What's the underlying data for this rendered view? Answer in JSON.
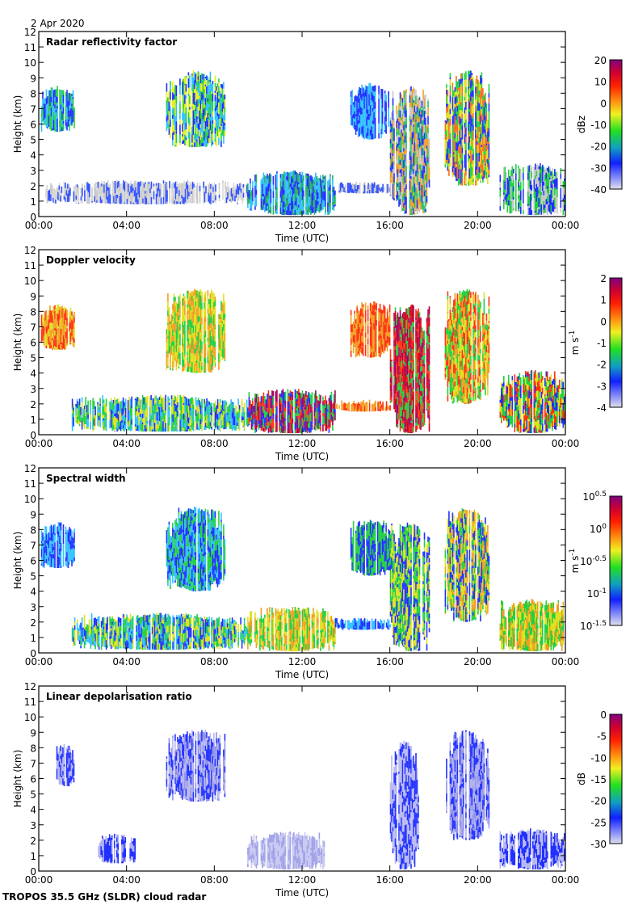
{
  "date_label": "2 Apr 2020",
  "footer": "TROPOS 35.5 GHz (SLDR) cloud radar",
  "chart_data": [
    {
      "type": "heatmap",
      "title": "Radar reflectivity factor",
      "xlabel": "Time (UTC)",
      "ylabel": "Height (km)",
      "xticks": [
        "00:00",
        "04:00",
        "08:00",
        "12:00",
        "16:00",
        "20:00",
        "00:00"
      ],
      "ylim": [
        0,
        12
      ],
      "xlim_hours": [
        0,
        24
      ],
      "colorbar": {
        "unit": "dBz",
        "ticks": [
          "20",
          "10",
          "0",
          "-10",
          "-20",
          "-30",
          "-40"
        ],
        "range": [
          -40,
          20
        ]
      },
      "regions": [
        {
          "t": [
            0.1,
            1.6
          ],
          "h": [
            5.5,
            8.5
          ],
          "colors": [
            "#2030ff",
            "#30c0ff",
            "#20d040"
          ]
        },
        {
          "t": [
            5.8,
            8.5
          ],
          "h": [
            4.5,
            9.5
          ],
          "colors": [
            "#2030ff",
            "#20d040",
            "#e0f020",
            "#30c0ff"
          ]
        },
        {
          "t": [
            0.3,
            9.5
          ],
          "h": [
            0.8,
            2.4
          ],
          "colors": [
            "#c8c8c8",
            "#3050ff",
            "#d8d8d8"
          ]
        },
        {
          "t": [
            9.5,
            13.5
          ],
          "h": [
            0.1,
            3.0
          ],
          "colors": [
            "#2030ff",
            "#20b060",
            "#30c0ff"
          ]
        },
        {
          "t": [
            13.5,
            16.0
          ],
          "h": [
            1.5,
            2.3
          ],
          "colors": [
            "#c8c8c8",
            "#3050ff"
          ]
        },
        {
          "t": [
            14.2,
            16.0
          ],
          "h": [
            5.0,
            8.7
          ],
          "colors": [
            "#2030ff",
            "#30c0ff"
          ]
        },
        {
          "t": [
            16.0,
            17.8
          ],
          "h": [
            0.1,
            8.5
          ],
          "colors": [
            "#2030ff",
            "#20c060",
            "#f0a020",
            "#c8c8c8"
          ]
        },
        {
          "t": [
            18.5,
            20.5
          ],
          "h": [
            2.0,
            9.5
          ],
          "colors": [
            "#f07020",
            "#e0e020",
            "#20d040",
            "#2030ff"
          ]
        },
        {
          "t": [
            21.0,
            24.0
          ],
          "h": [
            0.1,
            3.5
          ],
          "colors": [
            "#2030ff",
            "#20d040",
            "#c8c8c8"
          ]
        }
      ]
    },
    {
      "type": "heatmap",
      "title": "Doppler velocity",
      "xlabel": "Time (UTC)",
      "ylabel": "Height (km)",
      "xticks": [
        "00:00",
        "04:00",
        "08:00",
        "12:00",
        "16:00",
        "20:00",
        "00:00"
      ],
      "ylim": [
        0,
        12
      ],
      "xlim_hours": [
        0,
        24
      ],
      "colorbar": {
        "unit": "m s-1",
        "ticks": [
          "2",
          "1",
          "0",
          "-1",
          "-2",
          "-3",
          "-4"
        ],
        "range": [
          -4,
          2
        ]
      },
      "regions": [
        {
          "t": [
            0.1,
            1.6
          ],
          "h": [
            5.5,
            8.5
          ],
          "colors": [
            "#f0a020",
            "#e0e020",
            "#ff3010"
          ]
        },
        {
          "t": [
            5.8,
            8.5
          ],
          "h": [
            4.0,
            9.5
          ],
          "colors": [
            "#e0e020",
            "#20d040",
            "#f0a020"
          ]
        },
        {
          "t": [
            1.5,
            9.5
          ],
          "h": [
            0.2,
            2.6
          ],
          "colors": [
            "#20d040",
            "#30c0ff",
            "#e0e020",
            "#2030ff"
          ]
        },
        {
          "t": [
            9.5,
            13.5
          ],
          "h": [
            0.1,
            3.0
          ],
          "colors": [
            "#ff3010",
            "#20d040",
            "#2030ff",
            "#a00060"
          ]
        },
        {
          "t": [
            13.5,
            16.0
          ],
          "h": [
            1.5,
            2.3
          ],
          "colors": [
            "#f0a020",
            "#ff3010"
          ]
        },
        {
          "t": [
            14.2,
            16.0
          ],
          "h": [
            5.0,
            8.7
          ],
          "colors": [
            "#ff3010",
            "#f0a020"
          ]
        },
        {
          "t": [
            16.0,
            17.8
          ],
          "h": [
            0.1,
            8.5
          ],
          "colors": [
            "#ff3010",
            "#d00020",
            "#a00060",
            "#20d040"
          ]
        },
        {
          "t": [
            18.5,
            20.5
          ],
          "h": [
            2.0,
            9.5
          ],
          "colors": [
            "#ff3010",
            "#20d040",
            "#e0e020",
            "#f0a020"
          ]
        },
        {
          "t": [
            21.0,
            24.0
          ],
          "h": [
            0.1,
            4.2
          ],
          "colors": [
            "#2030ff",
            "#20d040",
            "#ff3010",
            "#e0e020"
          ]
        }
      ]
    },
    {
      "type": "heatmap",
      "title": "Spectral width",
      "xlabel": "Time (UTC)",
      "ylabel": "Height (km)",
      "xticks": [
        "00:00",
        "04:00",
        "08:00",
        "12:00",
        "16:00",
        "20:00",
        "00:00"
      ],
      "ylim": [
        0,
        12
      ],
      "xlim_hours": [
        0,
        24
      ],
      "colorbar": {
        "unit": "m s-1",
        "ticks": [
          "10^0.5",
          "10^0",
          "10^-0.5",
          "10^-1",
          "10^-1.5"
        ],
        "range": [
          -1.5,
          0.5
        ],
        "scale": "log"
      },
      "regions": [
        {
          "t": [
            0.1,
            1.6
          ],
          "h": [
            5.5,
            8.5
          ],
          "colors": [
            "#2030ff",
            "#30c0ff"
          ]
        },
        {
          "t": [
            5.8,
            8.5
          ],
          "h": [
            4.0,
            9.5
          ],
          "colors": [
            "#2030ff",
            "#20d040",
            "#30c0ff"
          ]
        },
        {
          "t": [
            1.5,
            9.5
          ],
          "h": [
            0.2,
            2.6
          ],
          "colors": [
            "#20d040",
            "#30c0ff",
            "#2030ff",
            "#e0e020"
          ]
        },
        {
          "t": [
            9.5,
            13.5
          ],
          "h": [
            0.1,
            3.0
          ],
          "colors": [
            "#e0e020",
            "#f0a020",
            "#20d040"
          ]
        },
        {
          "t": [
            13.5,
            16.0
          ],
          "h": [
            1.5,
            2.3
          ],
          "colors": [
            "#2030ff",
            "#30c0ff"
          ]
        },
        {
          "t": [
            14.2,
            16.0
          ],
          "h": [
            5.0,
            8.7
          ],
          "colors": [
            "#2030ff",
            "#20d040"
          ]
        },
        {
          "t": [
            16.0,
            17.8
          ],
          "h": [
            0.1,
            8.5
          ],
          "colors": [
            "#20d040",
            "#e0e020",
            "#2030ff"
          ]
        },
        {
          "t": [
            18.5,
            20.5
          ],
          "h": [
            2.0,
            9.5
          ],
          "colors": [
            "#e0e020",
            "#20d040",
            "#f0a020",
            "#2030ff"
          ]
        },
        {
          "t": [
            21.0,
            24.0
          ],
          "h": [
            0.1,
            3.5
          ],
          "colors": [
            "#f0a020",
            "#e0e020",
            "#20d040"
          ]
        }
      ]
    },
    {
      "type": "heatmap",
      "title": "Linear depolarisation ratio",
      "xlabel": "Time (UTC)",
      "ylabel": "Height (km)",
      "xticks": [
        "00:00",
        "04:00",
        "08:00",
        "12:00",
        "16:00",
        "20:00",
        "00:00"
      ],
      "ylim": [
        0,
        12
      ],
      "xlim_hours": [
        0,
        24
      ],
      "colorbar": {
        "unit": "dB",
        "ticks": [
          "0",
          "-5",
          "-10",
          "-15",
          "-20",
          "-25",
          "-30"
        ],
        "range": [
          -30,
          0
        ]
      },
      "regions": [
        {
          "t": [
            0.8,
            1.6
          ],
          "h": [
            5.5,
            8.3
          ],
          "colors": [
            "#2030ff",
            "#b0b0f0"
          ]
        },
        {
          "t": [
            5.8,
            8.5
          ],
          "h": [
            4.5,
            9.2
          ],
          "colors": [
            "#b8b8f0",
            "#9090e8",
            "#2030ff"
          ]
        },
        {
          "t": [
            2.7,
            4.4
          ],
          "h": [
            0.5,
            2.5
          ],
          "colors": [
            "#2030ff",
            "#b0b0f0"
          ]
        },
        {
          "t": [
            9.5,
            13.0
          ],
          "h": [
            0.1,
            2.6
          ],
          "colors": [
            "#c8c8f0",
            "#a0a0e8"
          ]
        },
        {
          "t": [
            16.0,
            17.3
          ],
          "h": [
            0.1,
            8.5
          ],
          "colors": [
            "#b8b8f0",
            "#2030ff"
          ]
        },
        {
          "t": [
            18.5,
            20.5
          ],
          "h": [
            2.0,
            9.2
          ],
          "colors": [
            "#b0b0f0",
            "#9090e8",
            "#2030ff"
          ]
        },
        {
          "t": [
            21.0,
            24.0
          ],
          "h": [
            0.1,
            2.8
          ],
          "colors": [
            "#b8b8f0",
            "#2030ff"
          ]
        }
      ]
    }
  ]
}
